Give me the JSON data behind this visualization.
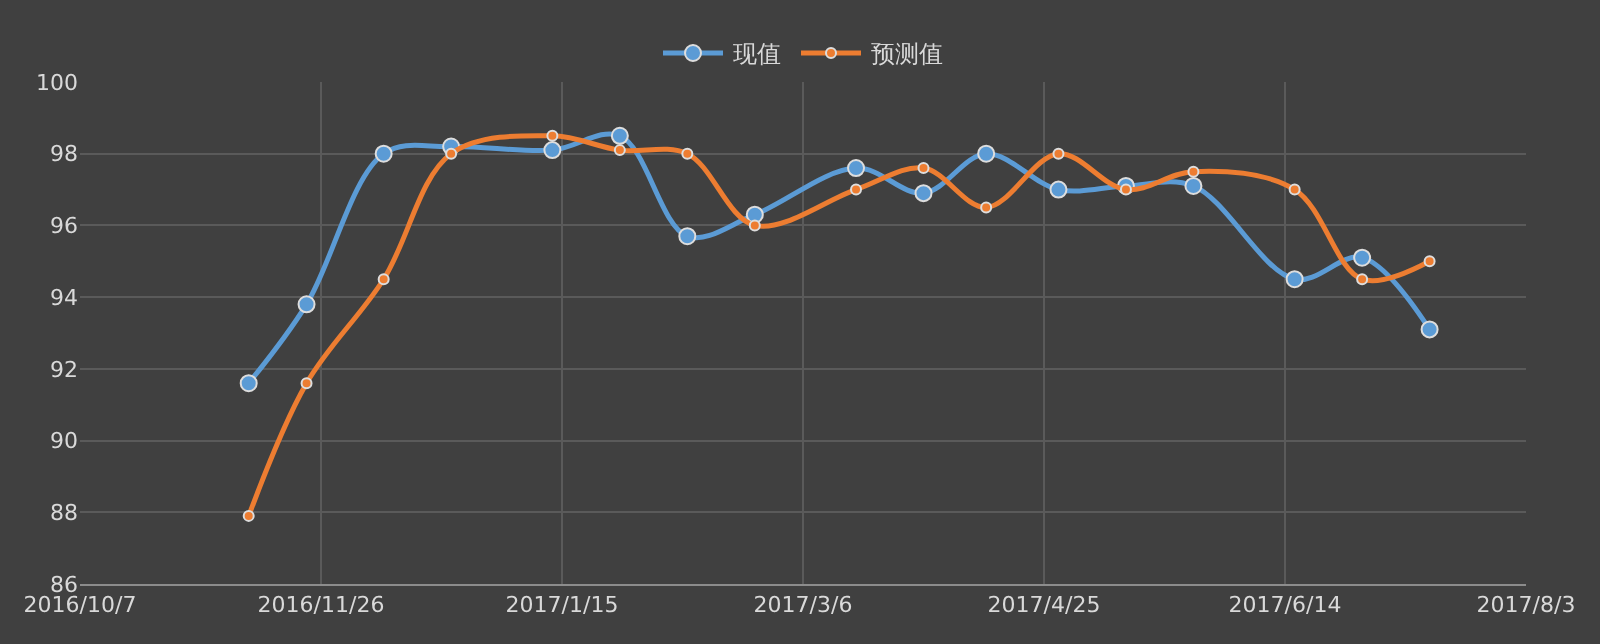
{
  "chart_data": {
    "type": "line",
    "x": [
      "2016-11-11",
      "2016-11-23",
      "2016-12-09",
      "2016-12-23",
      "2017-01-13",
      "2017-01-27",
      "2017-02-10",
      "2017-02-24",
      "2017-03-17",
      "2017-03-31",
      "2017-04-13",
      "2017-04-28",
      "2017-05-12",
      "2017-05-26",
      "2017-06-16",
      "2017-06-30",
      "2017-07-14"
    ],
    "series": [
      {
        "name": "现值",
        "color": "#5b9bd5",
        "values": [
          91.6,
          93.8,
          98.0,
          98.2,
          98.1,
          98.5,
          95.7,
          96.3,
          97.6,
          96.9,
          98.0,
          97.0,
          97.1,
          97.1,
          94.5,
          95.1,
          93.1
        ]
      },
      {
        "name": "预测值",
        "color": "#ed7d31",
        "values": [
          87.9,
          91.6,
          94.5,
          98.0,
          98.5,
          98.1,
          98.0,
          96.0,
          97.0,
          97.6,
          96.5,
          98.0,
          97.0,
          97.5,
          97.0,
          94.5,
          95.0
        ]
      }
    ],
    "xlim": [
      "2016-10-07",
      "2017-08-03"
    ],
    "xticks": [
      {
        "value": "2016-10-07",
        "label": "2016/10/7"
      },
      {
        "value": "2016-11-26",
        "label": "2016/11/26"
      },
      {
        "value": "2017-01-15",
        "label": "2017/1/15"
      },
      {
        "value": "2017-03-06",
        "label": "2017/3/6"
      },
      {
        "value": "2017-04-25",
        "label": "2017/4/25"
      },
      {
        "value": "2017-06-14",
        "label": "2017/6/14"
      },
      {
        "value": "2017-08-03",
        "label": "2017/8/3"
      }
    ],
    "ylim": [
      86,
      100
    ],
    "yticks": [
      86,
      88,
      90,
      92,
      94,
      96,
      98,
      100
    ],
    "grid": true,
    "legend": "top",
    "marker": "circle",
    "line_style": "solid"
  }
}
